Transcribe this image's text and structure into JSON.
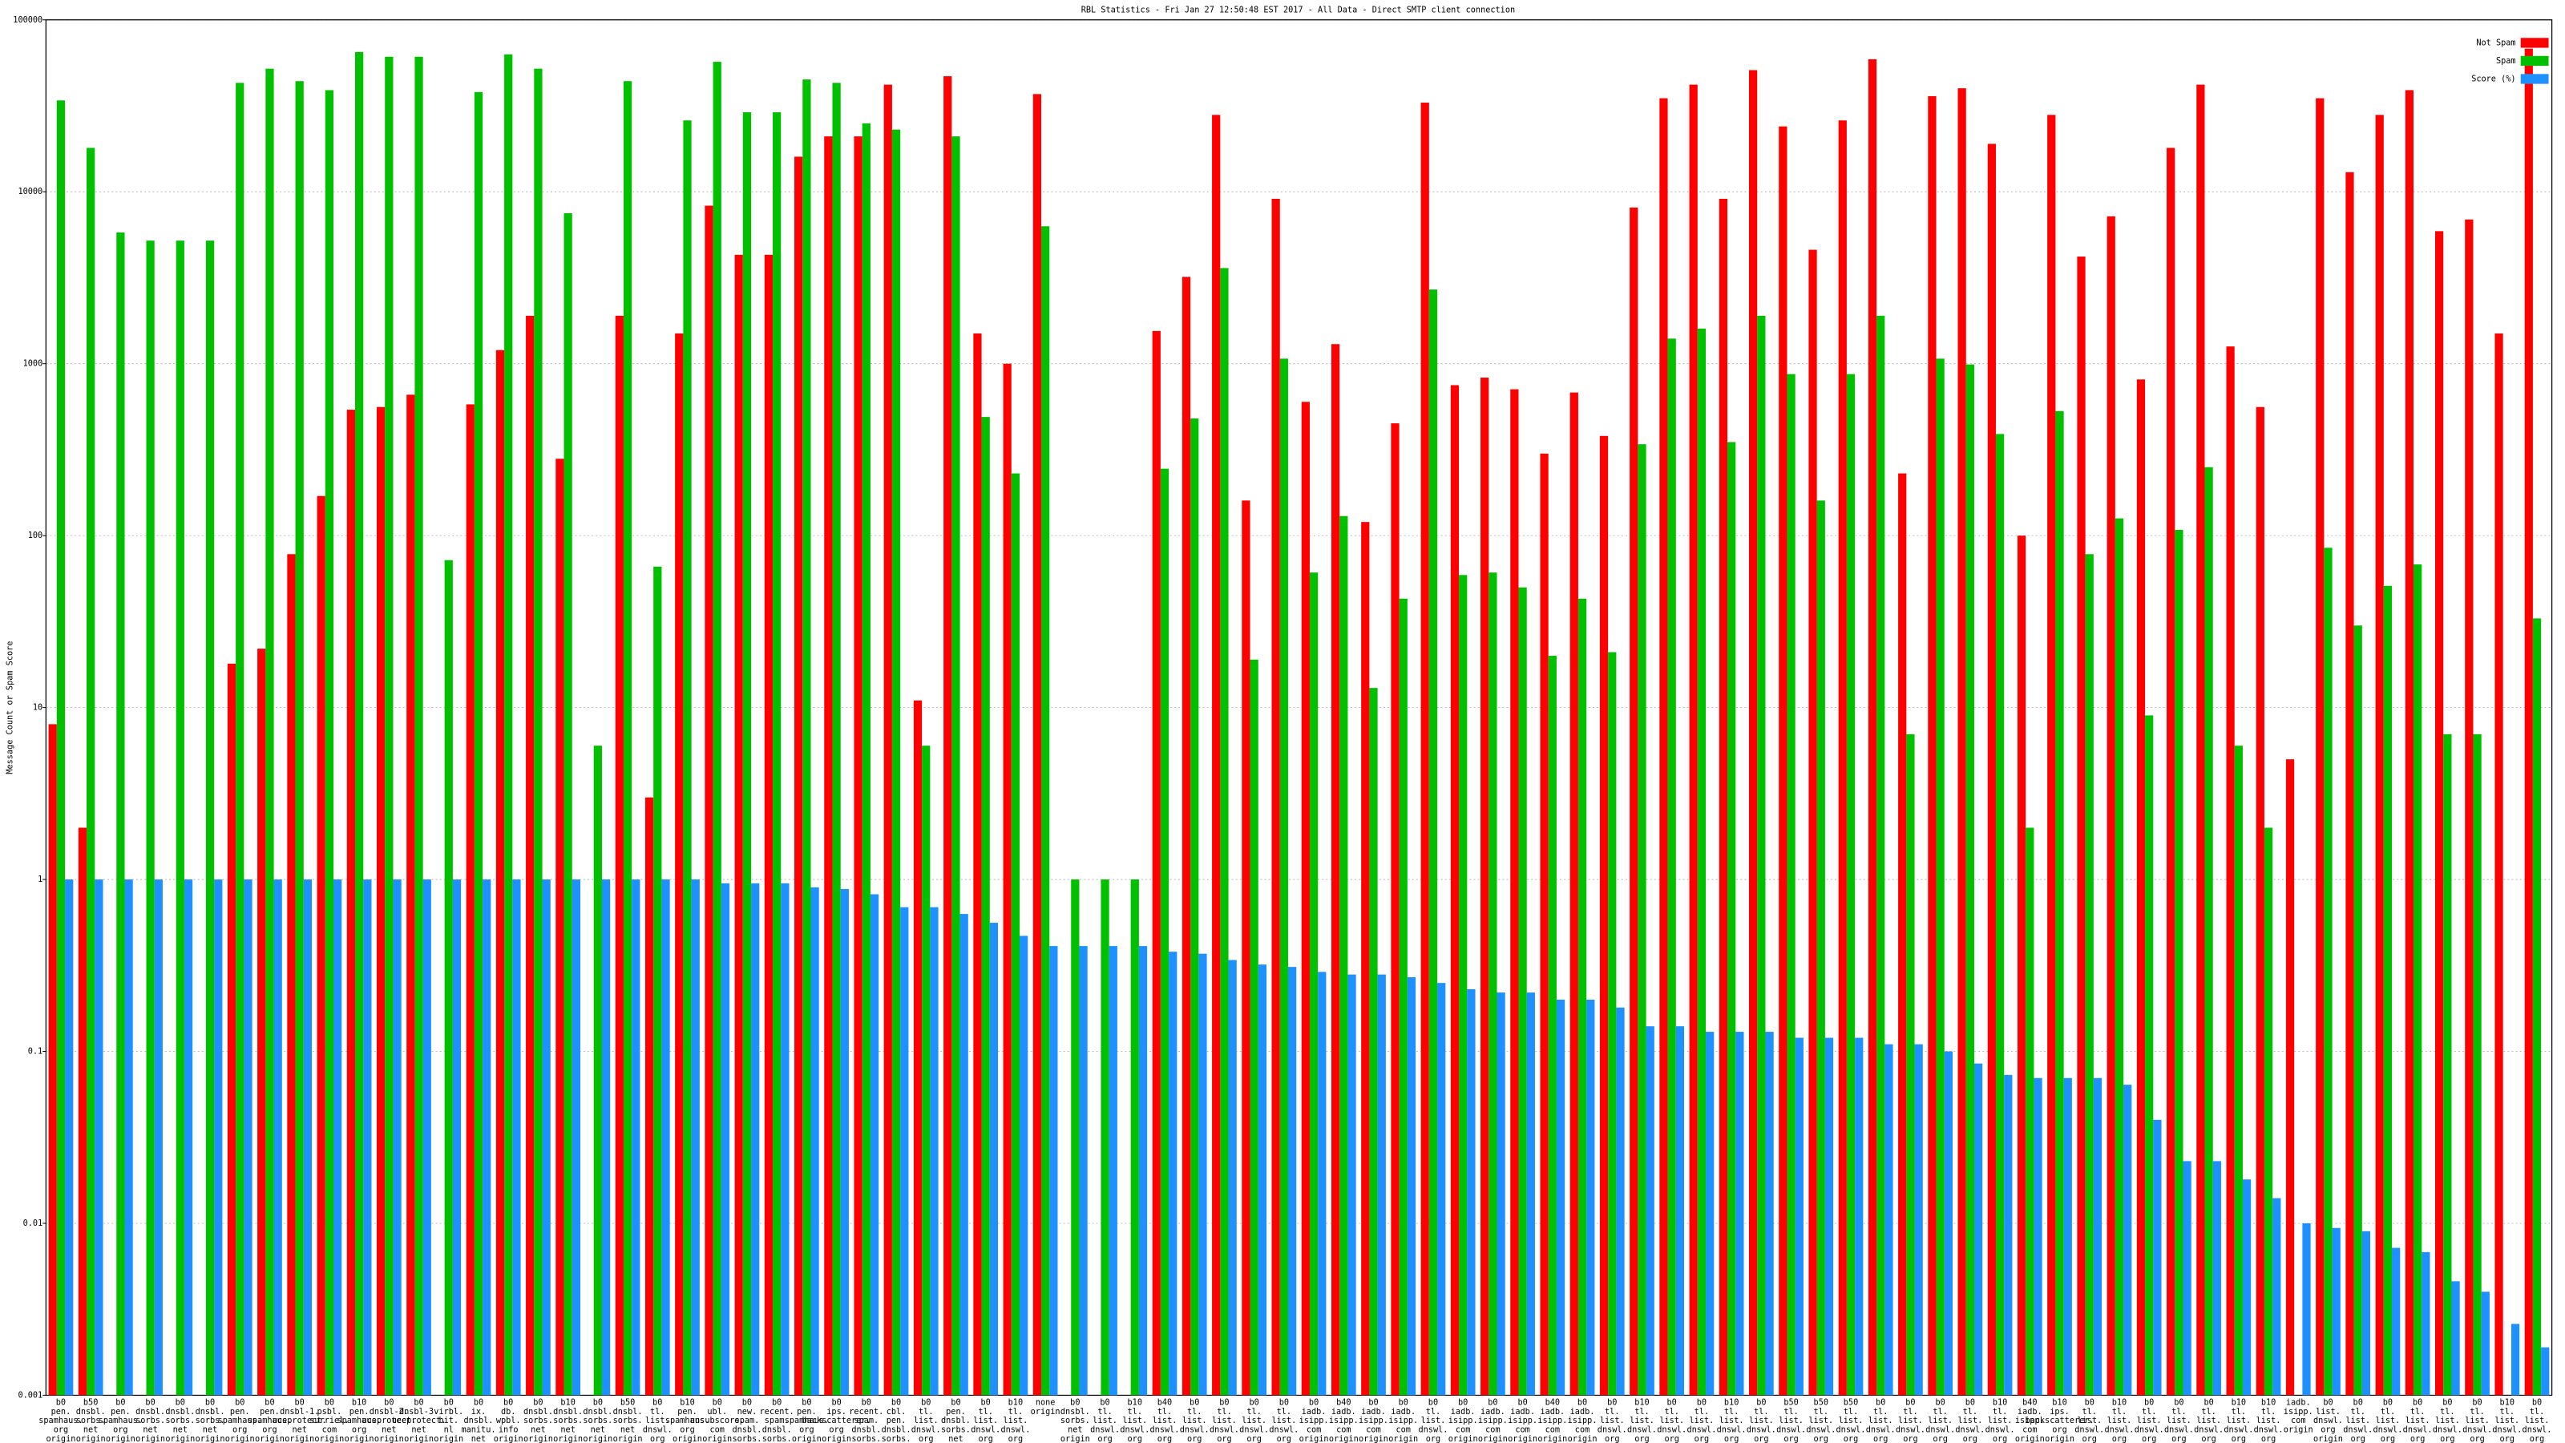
{
  "chart_data": {
    "type": "bar",
    "log_scale": true,
    "grid": true,
    "legend": "upper right",
    "title": "RBL Statistics - Fri Jan 27 12:50:48 EST 2017 - All Data - Direct SMTP client connection",
    "y_label": "Message Count or Spam Score",
    "ylim": [
      0.001,
      100000
    ],
    "yticks": [
      0.001,
      0.01,
      0.1,
      1,
      10,
      100,
      1000,
      10000,
      100000
    ],
    "categories": [
      "b0 pen. spamhaus. org origin",
      "b50 dnsbl. sorbs. net origin",
      "b0 pen. spamhaus. org origin",
      "b0 dnsbl. sorbs. net origin",
      "b0 dnsbl. sorbs. net origin",
      "b0 dnsbl. sorbs. net origin",
      "b0 pen. spamhaus. org origin",
      "b0 pen. spamhaus. org origin",
      "b0 dnsbl-1. uceprotect. net origin",
      "b0 psbl. surriel. com origin",
      "b10 pen. spamhaus. org origin",
      "b0 dnsbl-2. uceprotect. net origin",
      "b0 dnsbl-3. uceprotect. net origin",
      "b0 virbl. bit. nl origin",
      "b0 ix. dnsbl. manitu. net origin",
      "b0 db. wpbl. info origin",
      "b0 dnsbl. sorbs. net origin",
      "b10 dnsbl. sorbs. net origin",
      "b0 dnsbl. sorbs. net origin",
      "b50 dnsbl. sorbs. net origin",
      "b0 tl. list. dnswl. org origin",
      "b10 pen. spamhaus. org origin",
      "b0 ubl. unsubscore. com origin",
      "b0 new. spam. dnsbl. sorbs. net origin",
      "b0 recent. spam. dnsbl. sorbs. net origin",
      "b0 pen. spamhaus. org origin",
      "b0 ips. backscatterer. org origin",
      "b0 recent. spam. dnsbl. sorbs. net origin",
      "b0 cbl. pen. dnsbl. sorbs. net origin",
      "b0 tl. list. dnswl. org origin",
      "b0 pen. dnsbl. sorbs. net origin",
      "b0 tl. list. dnswl. org origin",
      "b10 tl. list. dnswl. org origin",
      "none origin",
      "b0 dnsbl. sorbs. net origin",
      "b0 tl. list. dnswl. org origin",
      "b10 tl. list. dnswl. org origin",
      "b40 tl. list. dnswl. org origin",
      "b0 tl. list. dnswl. org origin",
      "b0 tl. list. dnswl. org origin",
      "b0 tl. list. dnswl. org origin",
      "b0 tl. list. dnswl. org origin",
      "b0 iadb. isipp. com origin",
      "b40 iadb. isipp. com origin",
      "b0 iadb. isipp. com origin",
      "b0 iadb. isipp. com origin",
      "b0 tl. list. dnswl. org origin",
      "b0 iadb. isipp. com origin",
      "b0 iadb. isipp. com origin",
      "b0 iadb. isipp. com origin",
      "b40 iadb. isipp. com origin",
      "b0 iadb. isipp. com origin",
      "b0 tl. list. dnswl. org origin",
      "b10 tl. list. dnswl. org origin",
      "b0 tl. list. dnswl. org origin",
      "b0 tl. list. dnswl. org origin",
      "b10 tl. list. dnswl. org origin",
      "b0 tl. list. dnswl. org origin",
      "b50 tl. list. dnswl. org origin",
      "b50 tl. list. dnswl. org origin",
      "b50 tl. list. dnswl. org origin",
      "b0 tl. list. dnswl. org origin",
      "b0 tl. list. dnswl. org origin",
      "b0 tl. list. dnswl. org origin",
      "b0 tl. list. dnswl. org origin",
      "b10 tl. list. dnswl. org origin",
      "b40 iadb. isipp. com origin",
      "b10 ips. backscatterer. org origin",
      "b0 tl. list. dnswl. org origin",
      "b10 tl. list. dnswl. org origin",
      "b0 tl. list. dnswl. org origin",
      "b0 tl. list. dnswl. org origin",
      "b0 tl. list. dnswl. org origin",
      "b10 tl. list. dnswl. org origin",
      "b10 tl. list. dnswl. org origin",
      "iadb. isipp. com origin",
      "b0 list. dnswl. org origin",
      "b0 tl. list. dnswl. org origin",
      "b0 tl. list. dnswl. org origin",
      "b0 tl. list. dnswl. org origin",
      "b0 tl. list. dnswl. org origin",
      "b0 tl. list. dnswl. org origin",
      "b10 tl. list. dnswl. org origin",
      "b0 tl. list. dnswl. org origin"
    ],
    "series": [
      {
        "name": "Not Spam",
        "color": "#ff0000",
        "values": [
          8,
          2,
          null,
          null,
          null,
          null,
          18,
          22,
          78,
          170,
          540,
          560,
          660,
          null,
          580,
          1200,
          1900,
          280,
          null,
          1900,
          3,
          1500,
          8300,
          4300,
          4300,
          16000,
          21000,
          21000,
          42000,
          11,
          47000,
          1500,
          1000,
          37000,
          null,
          null,
          null,
          1550,
          3200,
          28000,
          160,
          9100,
          600,
          1300,
          120,
          450,
          33000,
          750,
          830,
          710,
          300,
          680,
          380,
          8100,
          35000,
          42000,
          9100,
          51000,
          24000,
          4600,
          26000,
          59000,
          230,
          36000,
          40000,
          19000,
          100,
          28000,
          4200,
          7200,
          810,
          18000,
          42000,
          1260,
          560,
          5,
          35000,
          13000,
          28000,
          39000,
          5900,
          6900,
          1500,
          68000
        ]
      },
      {
        "name": "Spam",
        "color": "#00c000",
        "values": [
          34000,
          18000,
          5800,
          5200,
          5200,
          5200,
          43000,
          52000,
          44000,
          39000,
          65000,
          61000,
          61000,
          72,
          38000,
          63000,
          52000,
          7500,
          6,
          44000,
          66,
          26000,
          57000,
          29000,
          29000,
          45000,
          43000,
          25000,
          23000,
          6,
          21000,
          490,
          230,
          6300,
          1,
          1,
          1,
          245,
          480,
          3600,
          19,
          1070,
          61,
          130,
          13,
          43,
          2700,
          59,
          61,
          50,
          20,
          43,
          21,
          340,
          1400,
          1600,
          350,
          1900,
          870,
          160,
          870,
          1900,
          7,
          1070,
          990,
          390,
          2,
          530,
          78,
          126,
          9,
          108,
          250,
          6,
          2,
          null,
          85,
          30,
          51,
          68,
          7,
          7,
          null,
          33
        ]
      },
      {
        "name": "Score (%)",
        "color": "#1e90ff",
        "values": [
          1,
          1,
          1,
          1,
          1,
          1,
          1,
          1,
          1,
          1,
          1,
          1,
          1,
          1,
          1,
          1,
          1,
          1,
          1,
          1,
          1,
          1,
          0.95,
          0.95,
          0.95,
          0.9,
          0.88,
          0.82,
          0.69,
          0.69,
          0.63,
          0.56,
          0.47,
          0.41,
          0.41,
          0.41,
          0.41,
          0.38,
          0.37,
          0.34,
          0.32,
          0.31,
          0.29,
          0.28,
          0.28,
          0.27,
          0.25,
          0.23,
          0.22,
          0.22,
          0.2,
          0.2,
          0.18,
          0.14,
          0.14,
          0.13,
          0.13,
          0.13,
          0.12,
          0.12,
          0.12,
          0.11,
          0.11,
          0.1,
          0.085,
          0.073,
          0.07,
          0.07,
          0.07,
          0.064,
          0.04,
          0.023,
          0.023,
          0.018,
          0.014,
          0.01,
          0.0094,
          0.009,
          0.0072,
          0.0068,
          0.0046,
          0.004,
          0.0026,
          0.0019
        ]
      }
    ]
  }
}
